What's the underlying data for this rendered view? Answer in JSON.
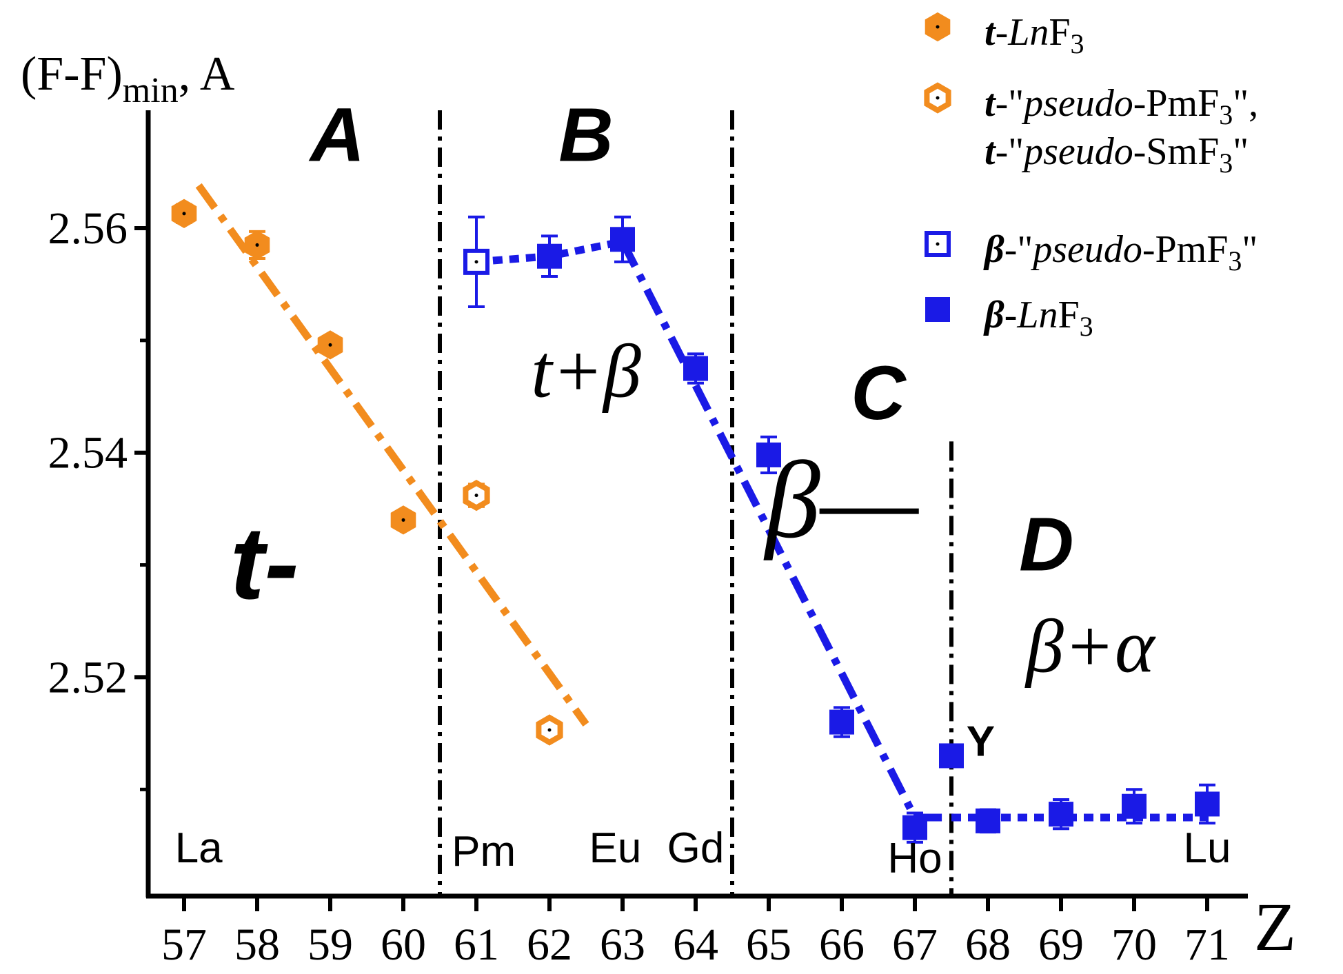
{
  "chart_data": {
    "type": "scatter",
    "xlabel": "Z",
    "ylabel": "(F-F)min, A",
    "xlim": [
      56.5,
      71.5
    ],
    "ylim": [
      2.5005,
      2.5705
    ],
    "x_ticks": [
      57,
      58,
      59,
      60,
      61,
      62,
      63,
      64,
      65,
      66,
      67,
      68,
      69,
      70,
      71
    ],
    "y_ticks": [
      2.52,
      2.54,
      2.56
    ],
    "y_tick_labels": [
      "2.52",
      "2.54",
      "2.56"
    ],
    "grid": false,
    "legend_position": "top-right",
    "series": [
      {
        "name": "t-LnF3",
        "color": "#F28C1E",
        "marker": "hexagon-filled",
        "points": [
          {
            "x": 57,
            "y": 2.5613,
            "err": 0.0008
          },
          {
            "x": 58,
            "y": 2.5585,
            "err": 0.0012
          },
          {
            "x": 59,
            "y": 2.5496,
            "err": 0.0005
          },
          {
            "x": 60,
            "y": 2.534,
            "err": 0.0005
          }
        ]
      },
      {
        "name": "t-\"pseudo-PmF3\", t-\"pseudo-SmF3\"",
        "color": "#F28C1E",
        "marker": "hexagon-open",
        "points": [
          {
            "x": 61,
            "y": 2.5362,
            "err": 0.001
          },
          {
            "x": 62,
            "y": 2.5153,
            "err": 0.0005
          }
        ]
      },
      {
        "name": "β-\"pseudo-PmF3\"",
        "color": "#1A1AE6",
        "marker": "square-open",
        "points": [
          {
            "x": 61,
            "y": 2.557,
            "err": 0.004
          }
        ]
      },
      {
        "name": "β-LnF3",
        "color": "#1A1AE6",
        "marker": "square-filled",
        "points": [
          {
            "x": 62,
            "y": 2.5575,
            "err": 0.0018
          },
          {
            "x": 63,
            "y": 2.559,
            "err": 0.002
          },
          {
            "x": 64,
            "y": 2.5475,
            "err": 0.0013
          },
          {
            "x": 65,
            "y": 2.5398,
            "err": 0.0016
          },
          {
            "x": 66,
            "y": 2.516,
            "err": 0.0013
          },
          {
            "x": 67,
            "y": 2.5066,
            "err": 0.0013
          },
          {
            "x": 67.5,
            "y": 2.513,
            "err": 0.0008
          },
          {
            "x": 68,
            "y": 2.5072,
            "err": 0.001
          },
          {
            "x": 69,
            "y": 2.5078,
            "err": 0.0013
          },
          {
            "x": 70,
            "y": 2.5085,
            "err": 0.0015
          },
          {
            "x": 71,
            "y": 2.5087,
            "err": 0.0017
          }
        ]
      }
    ],
    "fit_lines": [
      {
        "color": "#F28C1E",
        "style": "dash-dot",
        "points": [
          [
            57.2,
            2.5638
          ],
          [
            62.5,
            2.5158
          ]
        ]
      },
      {
        "color": "#1A1AE6",
        "style": "dotted",
        "points": [
          [
            61,
            2.557
          ],
          [
            62,
            2.5575
          ],
          [
            63,
            2.5588
          ]
        ]
      },
      {
        "color": "#1A1AE6",
        "style": "dash-dot",
        "points": [
          [
            63,
            2.5588
          ],
          [
            67,
            2.5075
          ],
          [
            67.5,
            2.5075
          ]
        ]
      },
      {
        "color": "#1A1AE6",
        "style": "dotted",
        "points": [
          [
            67.5,
            2.5075
          ],
          [
            71,
            2.5075
          ]
        ]
      }
    ],
    "region_boundaries": [
      {
        "x": 60.5,
        "from": 2.5705,
        "to": 2.5005
      },
      {
        "x": 64.5,
        "from": 2.5705,
        "to": 2.5005
      },
      {
        "x": 67.5,
        "from": 2.541,
        "to": 2.5005
      }
    ],
    "region_labels": [
      {
        "text": "A",
        "x": 59.1,
        "y": 2.566
      },
      {
        "text": "B",
        "x": 62.5,
        "y": 2.566
      },
      {
        "text": "C",
        "x": 66.5,
        "y": 2.543
      },
      {
        "text": "D",
        "x": 68.8,
        "y": 2.5295
      }
    ],
    "phase_labels": [
      {
        "text": "t-",
        "x": 58.1,
        "y": 2.527,
        "style": "bold"
      },
      {
        "text": "t+β",
        "x": 62.5,
        "y": 2.545,
        "style": "italic"
      },
      {
        "text": "β—",
        "x": 66.0,
        "y": 2.5325,
        "style": "italic"
      },
      {
        "text": "β+α",
        "x": 69.4,
        "y": 2.5205,
        "style": "italic"
      }
    ],
    "element_labels": [
      {
        "text": "La",
        "x": 57.2,
        "y": 2.5035
      },
      {
        "text": "Pm",
        "x": 61.1,
        "y": 2.5032
      },
      {
        "text": "Eu",
        "x": 62.9,
        "y": 2.5035
      },
      {
        "text": "Gd",
        "x": 64.0,
        "y": 2.5035
      },
      {
        "text": "Ho",
        "x": 67.0,
        "y": 2.5026
      },
      {
        "text": "Lu",
        "x": 71.0,
        "y": 2.5035
      },
      {
        "text": "Y",
        "x": 67.9,
        "y": 2.513
      }
    ],
    "legend": [
      {
        "marker": "hexagon-filled",
        "color": "#F28C1E",
        "lines": [
          [
            {
              "t": "t",
              "b": true,
              "i": true
            },
            {
              "t": "-"
            },
            {
              "t": "Ln",
              "i": true
            },
            {
              "t": "F"
            },
            {
              "t": "3",
              "sub": true
            }
          ]
        ]
      },
      {
        "marker": "hexagon-open",
        "color": "#F28C1E",
        "lines": [
          [
            {
              "t": "t",
              "b": true,
              "i": true
            },
            {
              "t": "-\""
            },
            {
              "t": "pseudo",
              "i": true
            },
            {
              "t": "-PmF"
            },
            {
              "t": "3",
              "sub": true
            },
            {
              "t": "\","
            }
          ],
          [
            {
              "t": "t",
              "b": true,
              "i": true
            },
            {
              "t": "-\""
            },
            {
              "t": "pseudo",
              "i": true
            },
            {
              "t": "-SmF"
            },
            {
              "t": "3",
              "sub": true
            },
            {
              "t": "\""
            }
          ]
        ]
      },
      {
        "marker": "square-open",
        "color": "#1A1AE6",
        "lines": [
          [
            {
              "t": "β",
              "b": true,
              "i": true
            },
            {
              "t": "-\""
            },
            {
              "t": "pseudo",
              "i": true
            },
            {
              "t": "-PmF"
            },
            {
              "t": "3",
              "sub": true
            },
            {
              "t": "\""
            }
          ]
        ]
      },
      {
        "marker": "square-filled",
        "color": "#1A1AE6",
        "lines": [
          [
            {
              "t": "β",
              "b": true,
              "i": true
            },
            {
              "t": "-"
            },
            {
              "t": "Ln",
              "i": true
            },
            {
              "t": "F"
            },
            {
              "t": "3",
              "sub": true
            }
          ]
        ]
      }
    ]
  }
}
